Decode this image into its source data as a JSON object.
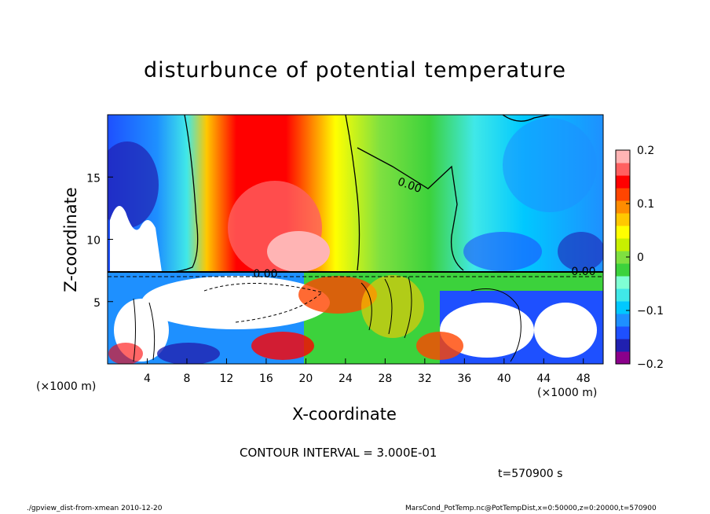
{
  "chart_data": {
    "type": "heatmap",
    "title": "disturbunce of potential temperature",
    "xlabel": "X-coordinate",
    "ylabel": "Z-coordinate",
    "x_unit": "(×1000 m)",
    "xlim": [
      0,
      50
    ],
    "ylim": [
      0,
      20
    ],
    "x_ticks": [
      4,
      8,
      12,
      16,
      20,
      24,
      28,
      32,
      36,
      40,
      44,
      48
    ],
    "y_ticks": [
      5,
      10,
      15
    ],
    "colorbar": {
      "range": [
        -0.2,
        0.2
      ],
      "tick_values": [
        0.2,
        0.1,
        0,
        -0.1,
        -0.2
      ],
      "tick_labels": [
        "0.2",
        "0.1",
        "0",
        "−0.1",
        "−0.2"
      ],
      "colors": [
        "#8b008b",
        "#2020b0",
        "#1e50ff",
        "#1e90ff",
        "#00c8ff",
        "#40e8e8",
        "#7fffd4",
        "#3cd23c",
        "#7fe040",
        "#c8f000",
        "#ffff00",
        "#ffc800",
        "#ff8c00",
        "#ff4500",
        "#ff0000",
        "#ff6060",
        "#ffb4b4"
      ]
    },
    "contour_labels": [
      "0.00",
      "0.00",
      "0.00"
    ],
    "contour_interval": "CONTOUR INTERVAL = 3.000E-01",
    "time_label": "t=570900 s"
  },
  "footer": {
    "left": "./gpview_dist-from-xmean  2010-12-20",
    "right": "MarsCond_PotTemp.nc@PotTempDist,x=0:50000,z=0:20000,t=570900"
  }
}
